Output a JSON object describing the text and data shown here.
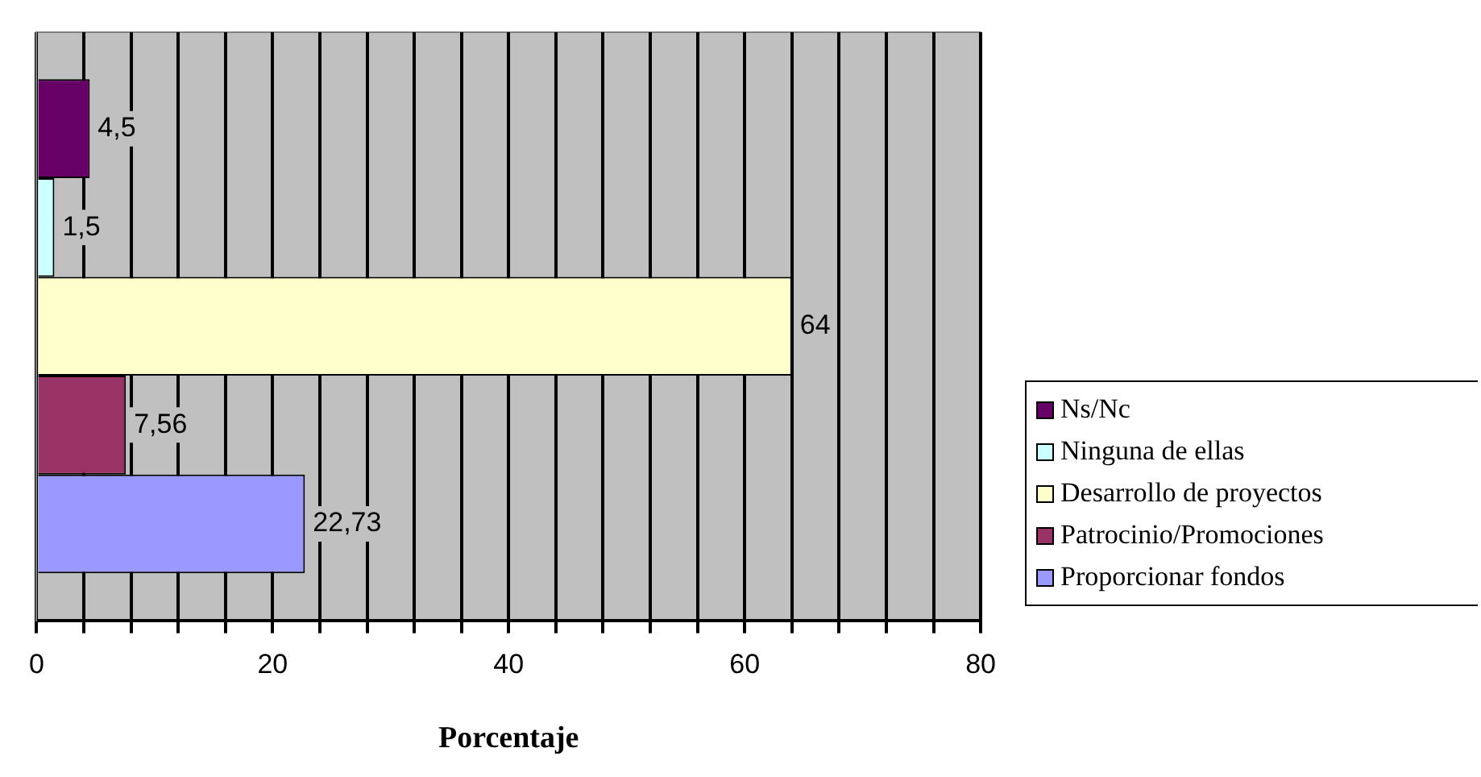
{
  "chart_data": {
    "type": "bar",
    "orientation": "horizontal",
    "xlabel": "Porcentaje",
    "categories": [
      null
    ],
    "series": [
      {
        "name": "Ns/Nc",
        "color": "#660066",
        "values": [
          4.5
        ],
        "value_labels": [
          "4,5"
        ]
      },
      {
        "name": "Ninguna de ellas",
        "color": "#ccffff",
        "values": [
          1.5
        ],
        "value_labels": [
          "1,5"
        ]
      },
      {
        "name": "Desarrollo de proyectos",
        "color": "#ffffcc",
        "values": [
          64
        ],
        "value_labels": [
          "64"
        ]
      },
      {
        "name": "Patrocinio/Promociones",
        "color": "#993366",
        "values": [
          7.56
        ],
        "value_labels": [
          "7,56"
        ]
      },
      {
        "name": "Proporcionar fondos",
        "color": "#9999ff",
        "values": [
          22.73
        ],
        "value_labels": [
          "22,73"
        ]
      }
    ],
    "xlim": [
      0,
      80
    ],
    "xticks": [
      0,
      {
        "value": 4,
        "label": null
      },
      {
        "value": 8,
        "label": null
      },
      {
        "value": 12,
        "label": null
      },
      {
        "value": 16,
        "label": null
      },
      20,
      {
        "value": 24,
        "label": null
      },
      {
        "value": 28,
        "label": null
      },
      {
        "value": 32,
        "label": null
      },
      {
        "value": 36,
        "label": null
      },
      40,
      {
        "value": 44,
        "label": null
      },
      {
        "value": 48,
        "label": null
      },
      {
        "value": 52,
        "label": null
      },
      {
        "value": 56,
        "label": null
      },
      60,
      {
        "value": 64,
        "label": null
      },
      {
        "value": 68,
        "label": null
      },
      {
        "value": 72,
        "label": null
      },
      {
        "value": 76,
        "label": null
      },
      80
    ],
    "grid": "x",
    "legend": "right"
  }
}
